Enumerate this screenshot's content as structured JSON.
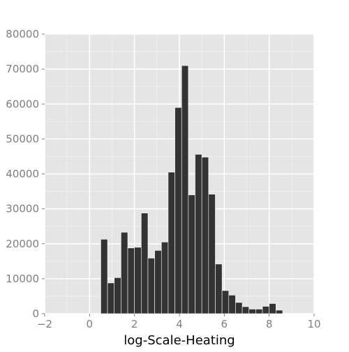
{
  "chart_data": {
    "type": "bar",
    "title": "",
    "xlabel": "log-Scale-Heating",
    "ylabel": "",
    "xlim": [
      -2,
      10
    ],
    "ylim": [
      0,
      80000
    ],
    "grid": true,
    "x_ticks": [
      -2,
      0,
      2,
      4,
      6,
      8,
      10
    ],
    "x_tick_labels": [
      "−2",
      "0",
      "2",
      "4",
      "6",
      "8",
      "10"
    ],
    "y_ticks": [
      0,
      10000,
      20000,
      30000,
      40000,
      50000,
      60000,
      70000,
      80000
    ],
    "y_tick_labels": [
      "0",
      "10000",
      "20000",
      "30000",
      "40000",
      "50000",
      "60000",
      "70000",
      "80000"
    ],
    "bin_width": 0.3,
    "bins": [
      {
        "x0": 0.5,
        "x1": 0.8,
        "count": 21300
      },
      {
        "x0": 0.8,
        "x1": 1.1,
        "count": 8800
      },
      {
        "x0": 1.1,
        "x1": 1.4,
        "count": 10300
      },
      {
        "x0": 1.4,
        "x1": 1.7,
        "count": 23300
      },
      {
        "x0": 1.7,
        "x1": 2.0,
        "count": 18800
      },
      {
        "x0": 2.0,
        "x1": 2.3,
        "count": 19000
      },
      {
        "x0": 2.3,
        "x1": 2.6,
        "count": 28800
      },
      {
        "x0": 2.6,
        "x1": 2.9,
        "count": 15900
      },
      {
        "x0": 2.9,
        "x1": 3.2,
        "count": 18100
      },
      {
        "x0": 3.2,
        "x1": 3.5,
        "count": 20500
      },
      {
        "x0": 3.5,
        "x1": 3.8,
        "count": 40500
      },
      {
        "x0": 3.8,
        "x1": 4.1,
        "count": 59000
      },
      {
        "x0": 4.1,
        "x1": 4.4,
        "count": 71000
      },
      {
        "x0": 4.4,
        "x1": 4.7,
        "count": 34000
      },
      {
        "x0": 4.7,
        "x1": 5.0,
        "count": 45600
      },
      {
        "x0": 5.0,
        "x1": 5.3,
        "count": 44800
      },
      {
        "x0": 5.3,
        "x1": 5.6,
        "count": 34200
      },
      {
        "x0": 5.6,
        "x1": 5.9,
        "count": 14200
      },
      {
        "x0": 5.9,
        "x1": 6.2,
        "count": 6600
      },
      {
        "x0": 6.2,
        "x1": 6.5,
        "count": 5300
      },
      {
        "x0": 6.5,
        "x1": 6.8,
        "count": 3200
      },
      {
        "x0": 6.8,
        "x1": 7.1,
        "count": 2000
      },
      {
        "x0": 7.1,
        "x1": 7.4,
        "count": 1300
      },
      {
        "x0": 7.4,
        "x1": 7.7,
        "count": 1300
      },
      {
        "x0": 7.7,
        "x1": 8.0,
        "count": 2100
      },
      {
        "x0": 8.0,
        "x1": 8.3,
        "count": 2900
      },
      {
        "x0": 8.3,
        "x1": 8.6,
        "count": 1000
      }
    ],
    "colors": {
      "panel_background": "#e5e5e5",
      "grid_major": "#ffffff",
      "grid_minor": "#f2f2f2",
      "bar_fill": "#333333",
      "bar_outline": "#ffffff",
      "tick_mark": "#7f7f7f",
      "tick_label": "#7f7f7f",
      "axis_title": "#000000"
    }
  }
}
